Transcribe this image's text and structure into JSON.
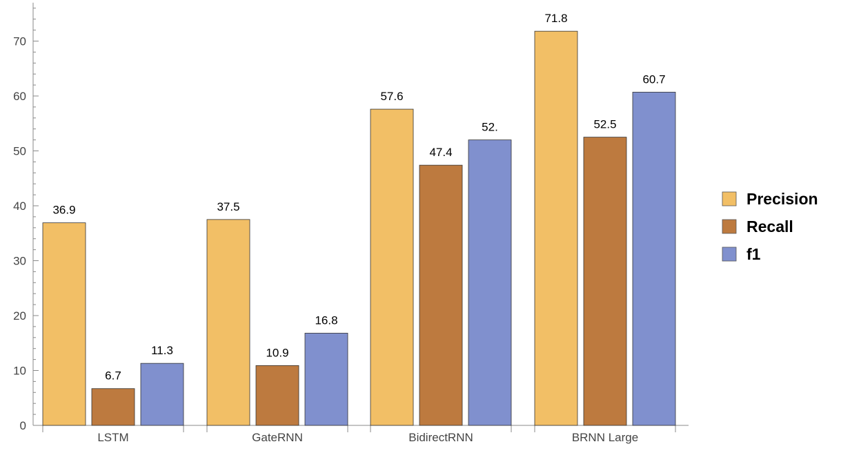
{
  "chart_data": {
    "type": "bar",
    "title": "",
    "xlabel": "",
    "ylabel": "",
    "categories": [
      "LSTM",
      "GateRNN",
      "BidirectRNN",
      "BRNN Large"
    ],
    "series": [
      {
        "name": "Precision",
        "color": "#F2BF66",
        "values": [
          36.9,
          37.5,
          57.6,
          71.8
        ],
        "labels": [
          "36.9",
          "37.5",
          "57.6",
          "71.8"
        ]
      },
      {
        "name": "Recall",
        "color": "#BD7A3F",
        "values": [
          6.7,
          10.9,
          47.4,
          52.5
        ],
        "labels": [
          "6.7",
          "10.9",
          "47.4",
          "52.5"
        ]
      },
      {
        "name": "f1",
        "color": "#8090CE",
        "values": [
          11.3,
          16.8,
          52.0,
          60.7
        ],
        "labels": [
          "11.3",
          "16.8",
          "52.",
          "60.7"
        ]
      }
    ],
    "ylim": [
      0,
      77
    ],
    "yticks": [
      0,
      10,
      20,
      30,
      40,
      50,
      60,
      70
    ],
    "ytick_labels": [
      "0",
      "10",
      "20",
      "30",
      "40",
      "50",
      "60",
      "70"
    ],
    "grid": false,
    "legend_position": "right"
  }
}
